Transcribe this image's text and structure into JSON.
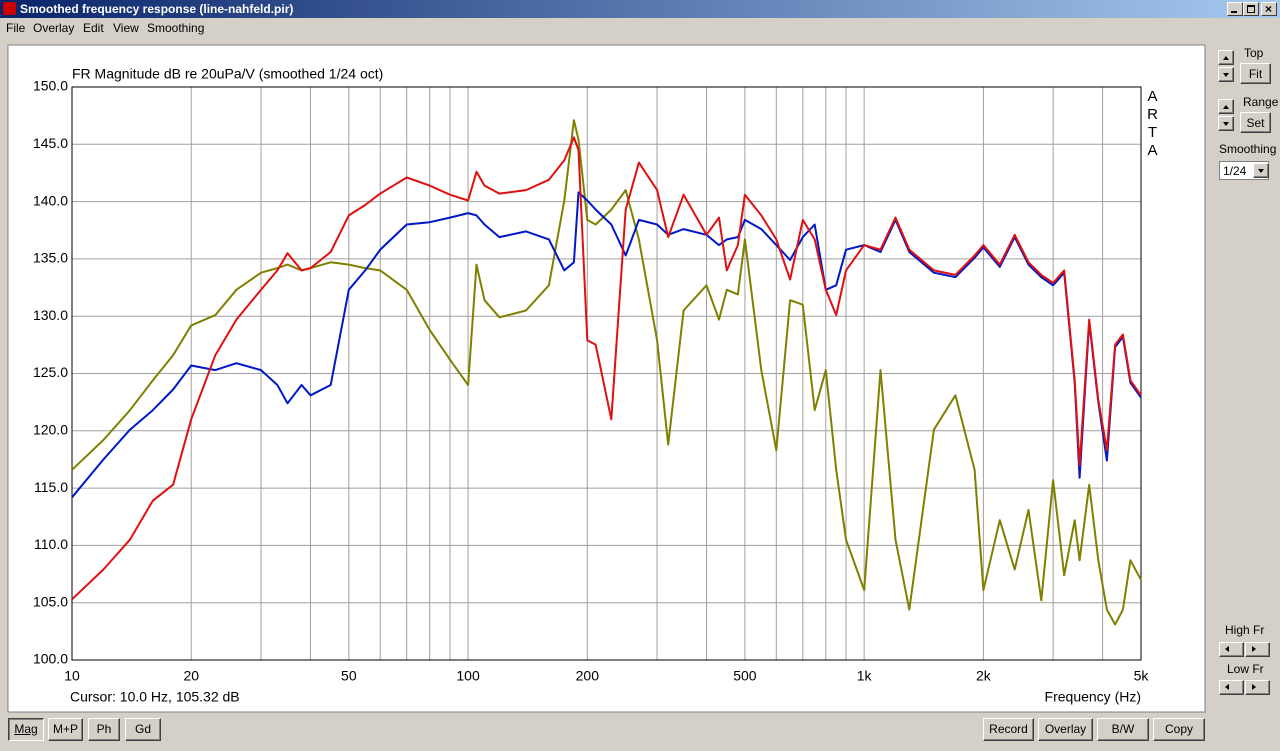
{
  "window": {
    "title": "Smoothed frequency response (line-nahfeld.pir)",
    "menu": [
      "File",
      "Overlay",
      "Edit",
      "View",
      "Smoothing"
    ]
  },
  "chart_data": {
    "type": "line",
    "title": "FR Magnitude dB re 20uPa/V (smoothed 1/24 oct)",
    "x_label": "Frequency (Hz)",
    "cursor": "Cursor: 10.0 Hz, 105.32 dB",
    "watermark": "ARTA",
    "x_scale": "log",
    "grid": true,
    "xlim": [
      10,
      5000
    ],
    "xticks": [
      10,
      20,
      50,
      100,
      200,
      500,
      {
        "value": 1000,
        "label": "1k"
      },
      {
        "value": 2000,
        "label": "2k"
      },
      {
        "value": 5000,
        "label": "5k"
      }
    ],
    "xgrid_minor": [
      30,
      40,
      60,
      70,
      80,
      90,
      300,
      400,
      600,
      700,
      800,
      900,
      3000,
      4000
    ],
    "ylim": [
      100,
      150
    ],
    "yticks": [
      {
        "value": 100,
        "label": "100.0"
      },
      {
        "value": 105,
        "label": "105.0"
      },
      {
        "value": 110,
        "label": "110.0"
      },
      {
        "value": 115,
        "label": "115.0"
      },
      {
        "value": 120,
        "label": "120.0"
      },
      {
        "value": 125,
        "label": "125.0"
      },
      {
        "value": 130,
        "label": "130.0"
      },
      {
        "value": 135,
        "label": "135.0"
      },
      {
        "value": 140,
        "label": "140.0"
      },
      {
        "value": 145,
        "label": "145.0"
      },
      {
        "value": 150,
        "label": "150.0"
      }
    ],
    "x": [
      10,
      12,
      14,
      16,
      18,
      20,
      23,
      26,
      30,
      33,
      35,
      38,
      40,
      45,
      50,
      55,
      60,
      70,
      80,
      90,
      100,
      105,
      110,
      120,
      140,
      160,
      175,
      185,
      190,
      200,
      210,
      230,
      250,
      270,
      300,
      320,
      350,
      400,
      430,
      450,
      480,
      500,
      550,
      600,
      650,
      700,
      750,
      800,
      850,
      900,
      1000,
      1100,
      1200,
      1300,
      1500,
      1700,
      1900,
      2000,
      2200,
      2400,
      2600,
      2800,
      3000,
      3200,
      3400,
      3500,
      3700,
      3900,
      4100,
      4300,
      4500,
      4700,
      5000
    ],
    "series": [
      {
        "color": "#808000",
        "values": [
          116.6,
          119.2,
          121.8,
          124.4,
          126.6,
          129.2,
          130.1,
          132.3,
          133.8,
          134.2,
          134.5,
          134,
          134.2,
          134.7,
          134.5,
          134.2,
          134,
          132.3,
          128.8,
          126.2,
          124,
          134.5,
          131.4,
          129.9,
          130.5,
          132.7,
          140.1,
          147.1,
          145.4,
          138.4,
          138,
          139.3,
          141,
          136.7,
          127.9,
          118.8,
          130.5,
          132.7,
          129.7,
          132.3,
          131.9,
          136.7,
          125.3,
          118.3,
          131.4,
          131,
          121.8,
          125.3,
          116.6,
          110.5,
          106.1,
          125.3,
          110.5,
          104.4,
          120.1,
          123.1,
          116.6,
          106.1,
          112.2,
          107.9,
          113.1,
          105.2,
          115.7,
          107.4,
          112.2,
          108.7,
          115.3,
          108.7,
          104.4,
          103.1,
          104.4,
          108.7,
          107
        ]
      },
      {
        "color": "#0018c8",
        "values": [
          114.2,
          117.5,
          120.1,
          121.8,
          123.6,
          125.7,
          125.3,
          125.9,
          125.3,
          124,
          122.4,
          124,
          123.1,
          124,
          132.3,
          134,
          135.8,
          138,
          138.2,
          138.6,
          139,
          138.8,
          138,
          136.9,
          137.4,
          136.7,
          134,
          134.7,
          140.8,
          140.1,
          139.3,
          138,
          135.3,
          138.4,
          138,
          137.1,
          137.6,
          137.1,
          136.2,
          136.7,
          136.9,
          138.4,
          137.6,
          136.2,
          134.9,
          136.9,
          138,
          132.3,
          132.7,
          135.8,
          136.2,
          135.6,
          138.4,
          135.6,
          133.8,
          133.4,
          135.1,
          136,
          134.3,
          136.9,
          134.5,
          133.4,
          132.7,
          133.8,
          124.2,
          115.9,
          129.5,
          122.5,
          117.4,
          127.3,
          128.2,
          124.2,
          122.9
        ]
      },
      {
        "color": "#e01010",
        "values": [
          105.3,
          107.9,
          110.5,
          113.9,
          115.3,
          121,
          126.6,
          129.7,
          132.3,
          134,
          135.5,
          134,
          134.2,
          135.6,
          138.8,
          139.7,
          140.7,
          142.1,
          141.4,
          140.6,
          140.1,
          142.6,
          141.4,
          140.7,
          141,
          141.9,
          143.6,
          145.6,
          144.5,
          127.9,
          127.5,
          121,
          139.3,
          143.4,
          141,
          136.9,
          140.6,
          137.1,
          138.6,
          134,
          136.2,
          140.6,
          138.8,
          136.7,
          133.2,
          138.4,
          136.7,
          132.3,
          130.1,
          134,
          136.2,
          135.8,
          138.6,
          135.8,
          134,
          133.6,
          135.3,
          136.2,
          134.5,
          137.1,
          134.7,
          133.6,
          132.9,
          134,
          124.4,
          117,
          129.7,
          122.7,
          118.3,
          127.5,
          128.4,
          124.4,
          123.1
        ]
      }
    ]
  },
  "controls": {
    "top": "Top",
    "fit": "Fit",
    "range": "Range",
    "set": "Set",
    "smoothing": "Smoothing",
    "smoothing_value": "1/24",
    "high_fr": "High Fr",
    "low_fr": "Low Fr",
    "tabs": [
      "Mag",
      "M+P",
      "Ph",
      "Gd"
    ],
    "buttons": [
      "Record",
      "Overlay",
      "B/W",
      "Copy"
    ]
  }
}
